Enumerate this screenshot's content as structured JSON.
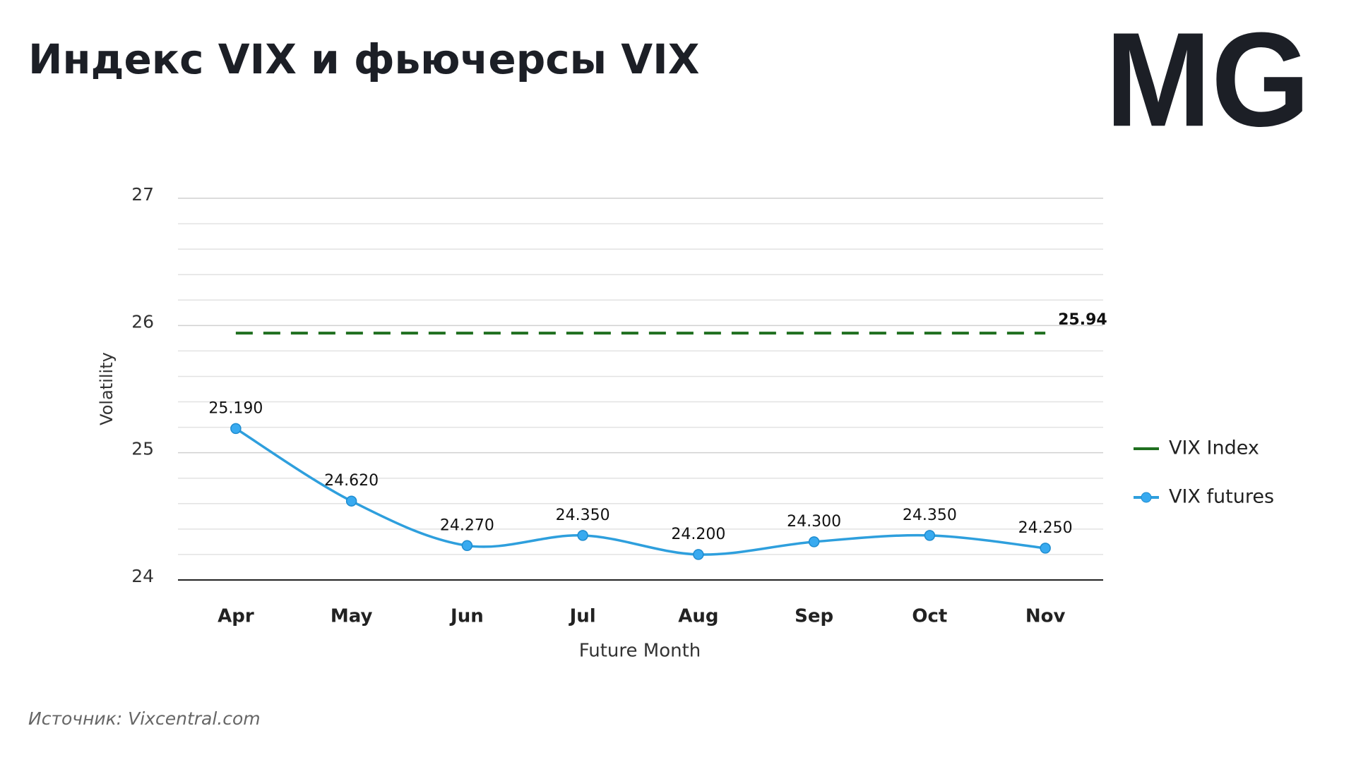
{
  "title": "Индекс VIX и фьючерсы VIX",
  "logo": "MG",
  "source": "Источник: Vixcentral.com",
  "chart_data": {
    "type": "line",
    "x_label": "Future Month",
    "y_label": "Volatility",
    "categories": [
      "Apr",
      "May",
      "Jun",
      "Jul",
      "Aug",
      "Sep",
      "Oct",
      "Nov"
    ],
    "series": [
      {
        "name": "VIX Index",
        "color": "#1f6f1f",
        "dashed": true,
        "markers": false,
        "values": [
          25.94,
          25.94,
          25.94,
          25.94,
          25.94,
          25.94,
          25.94,
          25.94
        ],
        "value_labels": [
          null,
          null,
          null,
          null,
          null,
          null,
          null,
          "25.94"
        ]
      },
      {
        "name": "VIX futures",
        "color": "#2e9fdd",
        "dashed": false,
        "markers": true,
        "values": [
          25.19,
          24.62,
          24.27,
          24.35,
          24.2,
          24.3,
          24.35,
          24.25
        ],
        "value_labels": [
          "25.190",
          "24.620",
          "24.270",
          "24.350",
          "24.200",
          "24.300",
          "24.350",
          "24.250"
        ]
      }
    ],
    "ylim": [
      24,
      27
    ],
    "yticks": [
      24,
      25,
      26,
      27
    ],
    "minor_yticks": [
      24.2,
      24.4,
      24.6,
      24.8,
      25.2,
      25.4,
      25.6,
      25.8,
      26.2,
      26.4,
      26.6,
      26.8
    ],
    "grid": true,
    "legend": "right"
  }
}
